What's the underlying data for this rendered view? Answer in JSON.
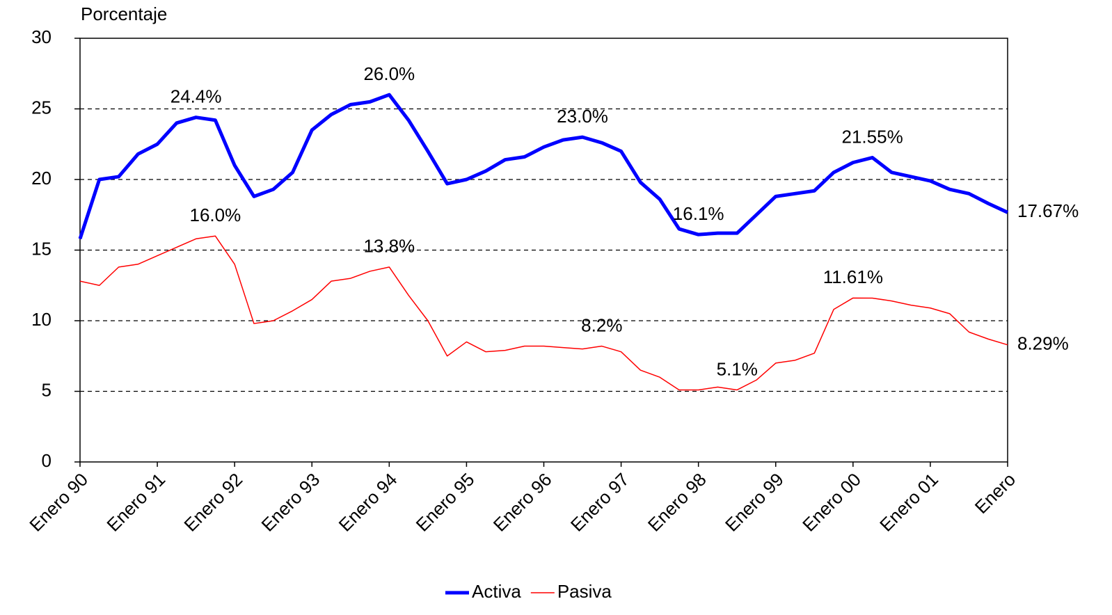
{
  "chart_data": {
    "type": "line",
    "title": "Porcentaje",
    "categories": [
      "Enero 90",
      null,
      null,
      null,
      "Enero 91",
      null,
      null,
      null,
      "Enero 92",
      null,
      null,
      null,
      "Enero 93",
      null,
      null,
      null,
      "Enero 94",
      null,
      null,
      null,
      "Enero 95",
      null,
      null,
      null,
      "Enero 96",
      null,
      null,
      null,
      "Enero 97",
      null,
      null,
      null,
      "Enero 98",
      null,
      null,
      null,
      "Enero 99",
      null,
      null,
      null,
      "Enero 00",
      null,
      null,
      null,
      "Enero 01",
      null,
      null,
      null,
      "Enero"
    ],
    "series": [
      {
        "name": "Activa",
        "color": "#0000ff",
        "width": 5,
        "values": [
          15.8,
          20.0,
          20.2,
          21.8,
          22.5,
          24.0,
          24.4,
          24.2,
          21.0,
          18.8,
          19.3,
          20.5,
          23.5,
          24.6,
          25.3,
          25.5,
          26.0,
          24.2,
          22.0,
          19.7,
          20.0,
          20.6,
          21.4,
          21.6,
          22.3,
          22.8,
          23.0,
          22.6,
          22.0,
          19.8,
          18.6,
          16.5,
          16.1,
          16.2,
          16.2,
          17.5,
          18.8,
          19.0,
          19.2,
          20.5,
          21.2,
          21.55,
          20.5,
          20.2,
          19.9,
          19.3,
          19.0,
          18.3,
          17.67
        ],
        "value_labels": [
          null,
          null,
          null,
          null,
          null,
          null,
          "24.4%",
          null,
          null,
          null,
          null,
          null,
          null,
          null,
          null,
          null,
          "26.0%",
          null,
          null,
          null,
          null,
          null,
          null,
          null,
          null,
          null,
          "23.0%",
          null,
          null,
          null,
          null,
          null,
          "16.1%",
          null,
          null,
          null,
          null,
          null,
          null,
          null,
          null,
          "21.55%",
          null,
          null,
          null,
          null,
          null,
          null,
          "17.67%"
        ]
      },
      {
        "name": "Pasiva",
        "color": "#ff0000",
        "width": 1.5,
        "values": [
          12.8,
          12.5,
          13.8,
          14.0,
          14.6,
          15.2,
          15.8,
          16.0,
          14.0,
          9.8,
          10.0,
          10.7,
          11.5,
          12.8,
          13.0,
          13.5,
          13.8,
          11.8,
          10.0,
          7.5,
          8.5,
          7.8,
          7.9,
          8.2,
          8.2,
          8.1,
          8.0,
          8.2,
          7.8,
          6.5,
          6.0,
          5.1,
          5.1,
          5.3,
          5.1,
          5.8,
          7.0,
          7.2,
          7.7,
          10.8,
          11.61,
          11.6,
          11.4,
          11.1,
          10.9,
          10.5,
          9.2,
          8.7,
          8.29
        ],
        "value_labels": [
          null,
          null,
          null,
          null,
          null,
          null,
          null,
          "16.0%",
          null,
          null,
          null,
          null,
          null,
          null,
          null,
          null,
          "13.8%",
          null,
          null,
          null,
          null,
          null,
          null,
          null,
          null,
          null,
          null,
          "8.2%",
          null,
          null,
          null,
          null,
          null,
          null,
          "5.1%",
          null,
          null,
          null,
          null,
          null,
          "11.61%",
          null,
          null,
          null,
          null,
          null,
          null,
          null,
          "8.29%"
        ]
      }
    ],
    "ylim": [
      0,
      30
    ],
    "yticks": [
      0,
      5,
      10,
      15,
      20,
      25,
      30
    ],
    "grid": true,
    "legend": "bottom"
  }
}
